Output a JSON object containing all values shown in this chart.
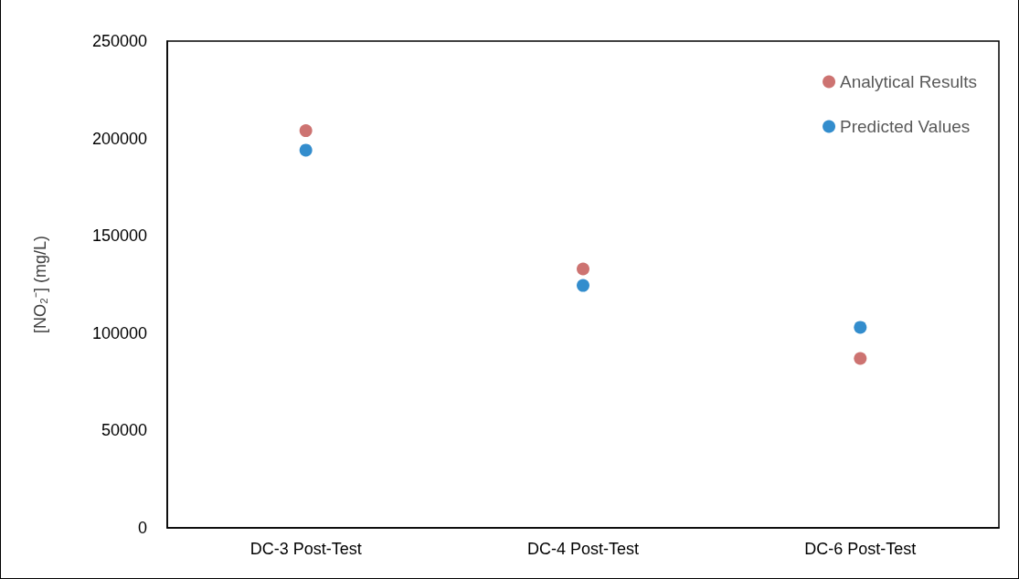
{
  "chart_data": {
    "type": "scatter",
    "ylabel": "[NO₂⁻] (mg/L)",
    "categories": [
      "DC-3 Post-Test",
      "DC-4 Post-Test",
      "DC-6 Post-Test"
    ],
    "series": [
      {
        "name": "Analytical Results",
        "color": "#c0504d",
        "values": [
          204000,
          133000,
          87000
        ]
      },
      {
        "name": "Predicted Values",
        "color": "#0070c0",
        "values": [
          194000,
          124500,
          103000
        ]
      }
    ],
    "ylim": [
      0,
      250000
    ],
    "yticks": [
      0,
      50000,
      100000,
      150000,
      200000,
      250000
    ],
    "grid": false,
    "legend": "top right",
    "marker": "circle"
  }
}
